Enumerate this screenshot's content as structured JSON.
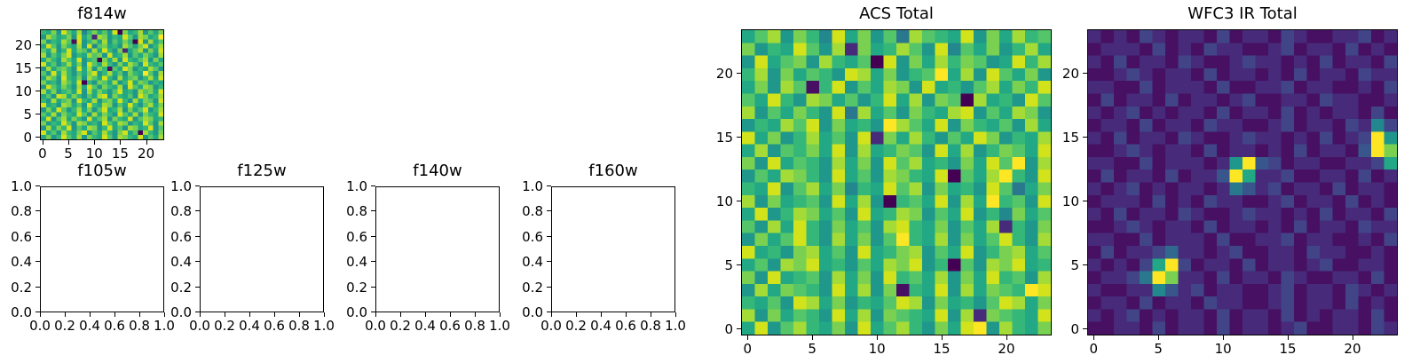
{
  "figure": {
    "background": "#ffffff",
    "text_color": "#000000",
    "colormap_name": "viridis",
    "colormap": [
      "#440154",
      "#471063",
      "#472a7a",
      "#414487",
      "#39568c",
      "#31688e",
      "#2a788e",
      "#23888e",
      "#1f988b",
      "#22a884",
      "#35b779",
      "#54c568",
      "#7ad151",
      "#a5db36",
      "#d2e21b",
      "#fde725"
    ]
  },
  "chart_data": [
    {
      "type": "heatmap",
      "title": "f814w",
      "colormap": "viridis",
      "shape": [
        24,
        24
      ],
      "xlim": [
        -0.5,
        23.5
      ],
      "ylim": [
        -0.5,
        23.5
      ],
      "x_tick_values": [
        0,
        5,
        10,
        15,
        20
      ],
      "x_tick_labels": [
        "0",
        "5",
        "10",
        "15",
        "20"
      ],
      "y_tick_values": [
        0,
        5,
        10,
        15,
        20
      ],
      "y_tick_labels": [
        "0",
        "5",
        "10",
        "15",
        "20"
      ],
      "value_encoding": "one hex digit per cell, 0=min to f=max on viridis scale, rows top-to-bottom",
      "appearance": "mostly mid/high green-yellow noise with scattered dark pixels",
      "values": [
        "a9c8eb9d7ac9b8e0c9ad8b9c",
        "8db9ac8e9b2dc8a9eb8dc9af",
        "c8a9db1e8ac9d8b9ca0e8d9b",
        "9eb8ca9d8e7bc9a8db9ce8ad",
        "b9d8ae9cb8d9ea8c29bd8c9e",
        "d8b9ce8a9dbc8e9ad8b9ca8d",
        "9ca8db9e8ab0c9d8ea9bd8c9",
        "e9b8ad9c8eb9da8c9db8ea9b",
        "8d9bca8e9d8ca1b9ec8a9db8",
        "b8e9da8b9ce8ad9b8ca9fb8d",
        "9db8ea9c8db9ea8d9bc8ad9e",
        "c9a8db9e0a8cb9d8ae9cb8a9",
        "8eb9ca8d9eb8ca9d8eb9dc8a",
        "d9c8ab9e8d9ca8be9a8dbc9e",
        "9b8ed9ca8b9de8ca9b8ec9ad",
        "a8d9bc8ea9d8bc9ea8d9cb8e",
        "e9a8dc9b8ea9dc8b9ea8bd9c",
        "8c9eb8ad9c8be9ad8c9be8ad",
        "b9d8ca9eb8d9ca8eb9d8ca9e",
        "9e8bd9ca8e9bd8ca9e8bdc9a",
        "c8a9eb8dc9a8eb9dc8a9eb8d",
        "8d9cae8b9dc8ae9b8dc9ae8b",
        "e9b8da9ce8b9da8ce9b0da8c",
        "9c8aeb9d8ca9eb8dca9e8b9d"
      ]
    },
    {
      "type": "empty",
      "title": "f105w",
      "xlim": [
        0,
        1
      ],
      "ylim": [
        0,
        1
      ],
      "x_tick_values": [
        0,
        0.2,
        0.4,
        0.6,
        0.8,
        1
      ],
      "x_tick_labels": [
        "0.0",
        "0.2",
        "0.4",
        "0.6",
        "0.8",
        "1.0"
      ],
      "y_tick_values": [
        0,
        0.2,
        0.4,
        0.6,
        0.8,
        1
      ],
      "y_tick_labels": [
        "0.0",
        "0.2",
        "0.4",
        "0.6",
        "0.8",
        "1.0"
      ]
    },
    {
      "type": "empty",
      "title": "f125w",
      "xlim": [
        0,
        1
      ],
      "ylim": [
        0,
        1
      ],
      "x_tick_values": [
        0,
        0.2,
        0.4,
        0.6,
        0.8,
        1
      ],
      "x_tick_labels": [
        "0.0",
        "0.2",
        "0.4",
        "0.6",
        "0.8",
        "1.0"
      ],
      "y_tick_values": [
        0,
        0.2,
        0.4,
        0.6,
        0.8,
        1
      ],
      "y_tick_labels": [
        "0.0",
        "0.2",
        "0.4",
        "0.6",
        "0.8",
        "1.0"
      ]
    },
    {
      "type": "empty",
      "title": "f140w",
      "xlim": [
        0,
        1
      ],
      "ylim": [
        0,
        1
      ],
      "x_tick_values": [
        0,
        0.2,
        0.4,
        0.6,
        0.8,
        1
      ],
      "x_tick_labels": [
        "0.0",
        "0.2",
        "0.4",
        "0.6",
        "0.8",
        "1.0"
      ],
      "y_tick_values": [
        0,
        0.2,
        0.4,
        0.6,
        0.8,
        1
      ],
      "y_tick_labels": [
        "0.0",
        "0.2",
        "0.4",
        "0.6",
        "0.8",
        "1.0"
      ]
    },
    {
      "type": "empty",
      "title": "f160w",
      "xlim": [
        0,
        1
      ],
      "ylim": [
        0,
        1
      ],
      "x_tick_values": [
        0,
        0.2,
        0.4,
        0.6,
        0.8,
        1
      ],
      "x_tick_labels": [
        "0.0",
        "0.2",
        "0.4",
        "0.6",
        "0.8",
        "1.0"
      ],
      "y_tick_values": [
        0,
        0.2,
        0.4,
        0.6,
        0.8,
        1
      ],
      "y_tick_labels": [
        "0.0",
        "0.2",
        "0.4",
        "0.6",
        "0.8",
        "1.0"
      ]
    },
    {
      "type": "heatmap",
      "title": "ACS Total",
      "colormap": "viridis",
      "shape": [
        24,
        24
      ],
      "xlim": [
        -0.5,
        23.5
      ],
      "ylim": [
        -0.5,
        23.5
      ],
      "x_tick_values": [
        0,
        5,
        10,
        15,
        20
      ],
      "x_tick_labels": [
        "0",
        "5",
        "10",
        "15",
        "20"
      ],
      "y_tick_values": [
        0,
        5,
        10,
        15,
        20
      ],
      "y_tick_labels": [
        "0",
        "5",
        "10",
        "15",
        "20"
      ],
      "value_encoding": "one hex digit per cell, 0=min to f=max on viridis scale, rows top-to-bottom",
      "appearance": "mostly mid/high green-yellow noise with scattered dark and bright-yellow pixels",
      "values": [
        "9bd8ca7e9c8b6dba9e8c9dab",
        "c8a9eb8d2c9adb8e7b9c8ad9",
        "8e9bc8da9b0e8c9dacb89ead",
        "ad8c9ba8ed9c8abf9d8eb9c8",
        "9c8db1ae8b9dc8e9a8bd9cae",
        "b9ea8dc9b8ae9d8cb0d9a8eb",
        "d8b9ca8e6d9b8ca9de8b9dc8",
        "8a9dbe8c9a8fdb9e8ca9b8d9",
        "e9c8ad9b8e2c9da8b9ec8a9d",
        "9d8bac9e8d9acb8e9d8acb9e",
        "c8e9ba8d9c8ebd9a8c9ebf8d",
        "8b9dca8e9b8dca9e0b9dfa8e",
        "a9e8bd9c7a9ebd8c9a8eb69c",
        "d8c9ab8e9d80ab9e8d9fab8e",
        "9e8adc9b8e9adc8b9e8a7c9b",
        "b8d9ea8c9b8dea9c8b9d2a8c",
        "8c9bea8d9c8bfa9d8c9bea8d",
        "e9a8cd9b8e9acd8b9e8acd9b",
        "9b8dce9a8b9dce8a0b8dce9a",
        "c8e9ab8d9c8eab9d8c9eab8d",
        "8d9cba8e9d8c1a9e8d9cbafe",
        "a9b8ed9c8a9bed8c9a8bed9c",
        "d8c9ba8e9d8cba9e8d2cba9e",
        "9e8bda9c8e9bda8c9ef8da9c"
      ]
    },
    {
      "type": "heatmap",
      "title": "WFC3 IR Total",
      "colormap": "viridis",
      "shape": [
        24,
        24
      ],
      "xlim": [
        -0.5,
        23.5
      ],
      "ylim": [
        -0.5,
        23.5
      ],
      "x_tick_values": [
        0,
        5,
        10,
        15,
        20
      ],
      "x_tick_labels": [
        "0",
        "5",
        "10",
        "15",
        "20"
      ],
      "y_tick_values": [
        0,
        5,
        10,
        15,
        20
      ],
      "y_tick_labels": [
        "0",
        "5",
        "10",
        "15",
        "20"
      ],
      "value_encoding": "one hex digit per cell, 0=min to f=max on viridis scale, rows top-to-bottom",
      "appearance": "dark purple noise background with three compact bright yellow sources",
      "bright_sources_approx": [
        {
          "x": 5.5,
          "y": 4.5
        },
        {
          "x": 11.5,
          "y": 12.5
        },
        {
          "x": 22,
          "y": 14.5
        }
      ],
      "values": [
        "212132122131221321122312",
        "122213121322112312213121",
        "213122132112322121312213",
        "112321221312212131221322",
        "221131222131122312211213",
        "131221312212311221322112",
        "212312122131221312122131",
        "122131221322112312213273",
        "2131221321123221213123f8",
        "1123212213122121312214fc",
        "221131222128f43122112239",
        "13122131224f922311221312",
        "212312122126423122131221",
        "122213121322112312213121",
        "213122132112322121312213",
        "112321221312212131221322",
        "221131222131122312211213",
        "131223522123112213221121",
        "212139f31221312212311221",
        "12236fc22131221321122131",
        "211227423122112312213212",
        "122131221322112312213121",
        "212312122131221312122131",
        "112213122131221231122132"
      ]
    }
  ]
}
